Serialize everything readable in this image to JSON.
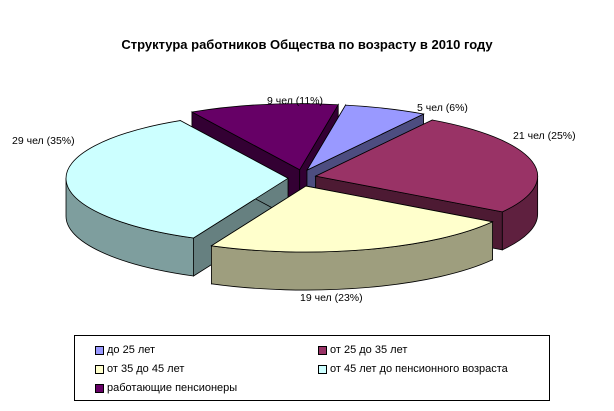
{
  "chart_data": {
    "type": "pie",
    "title": "Структура работников Общества по возрасту в 2010 году",
    "categories": [
      "до 25 лет",
      "от 25 до 35 лет",
      "от 35 до 45 лет",
      "от 45 лет до пенсионного возраста",
      "работающие пенсионеры"
    ],
    "values": [
      5,
      21,
      19,
      29,
      9
    ],
    "percents": [
      6,
      25,
      23,
      35,
      11
    ],
    "data_labels": [
      "5 чел (6%)",
      "21 чел (25%)",
      "19 чел (23%)",
      "29 чел (35%)",
      "9 чел (11%)"
    ],
    "colors": [
      "#9999ff",
      "#993366",
      "#ffffcc",
      "#ccffff",
      "#660066"
    ],
    "exploded": true,
    "three_d": true,
    "legend_position": "bottom"
  }
}
